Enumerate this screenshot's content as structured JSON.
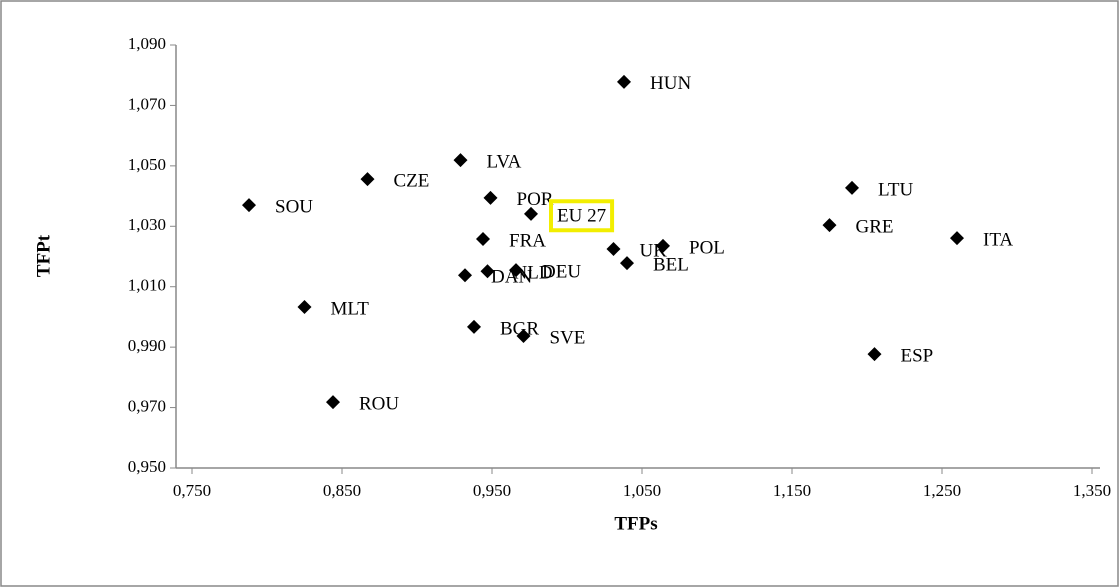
{
  "chart_data": {
    "type": "scatter",
    "x_label": "TFPs",
    "y_label": "TFPt",
    "xlim": [
      0.75,
      1.35
    ],
    "xticks": [
      {
        "value": 0.75,
        "label": "0,750"
      },
      {
        "value": 0.85,
        "label": "0,850"
      },
      {
        "value": 0.95,
        "label": "0,950"
      },
      {
        "value": 1.05,
        "label": "1,050"
      },
      {
        "value": 1.15,
        "label": "1,150"
      },
      {
        "value": 1.25,
        "label": "1,250"
      },
      {
        "value": 1.35,
        "label": "1,350"
      }
    ],
    "ylim": [
      0.95,
      1.09
    ],
    "yticks": [
      {
        "value": 0.95,
        "label": "0,950"
      },
      {
        "value": 0.97,
        "label": "0,970"
      },
      {
        "value": 0.99,
        "label": "0,990"
      },
      {
        "value": 1.01,
        "label": "1,010"
      },
      {
        "value": 1.03,
        "label": "1,030"
      },
      {
        "value": 1.05,
        "label": "1,050"
      },
      {
        "value": 1.07,
        "label": "1,070"
      },
      {
        "value": 1.09,
        "label": "1,090"
      }
    ],
    "grid": false,
    "color": "#000000",
    "highlight": "EU 27",
    "highlight_color": "#f2ee00",
    "labels": [
      "HUN",
      "LVA",
      "CZE",
      "SOU",
      "POR",
      "EU 27",
      "LTU",
      "GRE",
      "ITA",
      "FRA",
      "UK",
      "POL",
      "BEL",
      "DAN",
      "NLD",
      "DEU",
      "MLT",
      "BGR",
      "SVE",
      "ESP",
      "ROU"
    ],
    "x": [
      1.038,
      0.929,
      0.867,
      0.788,
      0.949,
      0.976,
      1.19,
      1.175,
      1.26,
      0.944,
      1.031,
      1.064,
      1.04,
      0.932,
      0.947,
      0.966,
      0.825,
      0.938,
      0.971,
      1.205,
      0.844
    ],
    "y": [
      1.0778,
      1.0519,
      1.0456,
      1.037,
      1.0394,
      1.0341,
      1.0427,
      1.0304,
      1.0261,
      1.0258,
      1.0225,
      1.0235,
      1.0178,
      1.0138,
      1.0151,
      1.0155,
      1.0033,
      0.9967,
      0.9937,
      0.9877,
      0.9718
    ]
  }
}
